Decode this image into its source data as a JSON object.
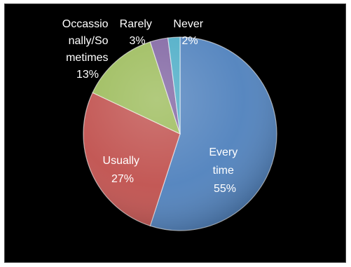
{
  "chart_data": {
    "type": "pie",
    "title": "",
    "series": [
      {
        "label": "Every time",
        "value": 55,
        "value_label": "55%",
        "color": "#4f81bd",
        "label_color": "#ffffff"
      },
      {
        "label": "Usually",
        "value": 27,
        "value_label": "27%",
        "color": "#c0504d",
        "label_color": "#ffffff"
      },
      {
        "label": "Occassionally/Sometimes",
        "value": 13,
        "value_label": "13%",
        "color": "#9bbb59",
        "label_color": "#ffffff"
      },
      {
        "label": "Rarely",
        "value": 3,
        "value_label": "3%",
        "color": "#8064a2",
        "label_color": "#ffffff"
      },
      {
        "label": "Never",
        "value": 2,
        "value_label": "2%",
        "color": "#4bacc6",
        "label_color": "#ffffff"
      }
    ],
    "start_angle_deg": 0,
    "direction": "clockwise",
    "legend": "none",
    "data_labels": true,
    "background": "#000000"
  },
  "labels": {
    "every_time": [
      "Every",
      "time",
      "55%"
    ],
    "usually": [
      "Usually",
      "27%"
    ],
    "occasionally": [
      "Occassio",
      "nally/So",
      "metimes",
      "13%"
    ],
    "rarely": [
      "Rarely",
      "3%"
    ],
    "never": [
      "Never",
      "2%"
    ]
  }
}
